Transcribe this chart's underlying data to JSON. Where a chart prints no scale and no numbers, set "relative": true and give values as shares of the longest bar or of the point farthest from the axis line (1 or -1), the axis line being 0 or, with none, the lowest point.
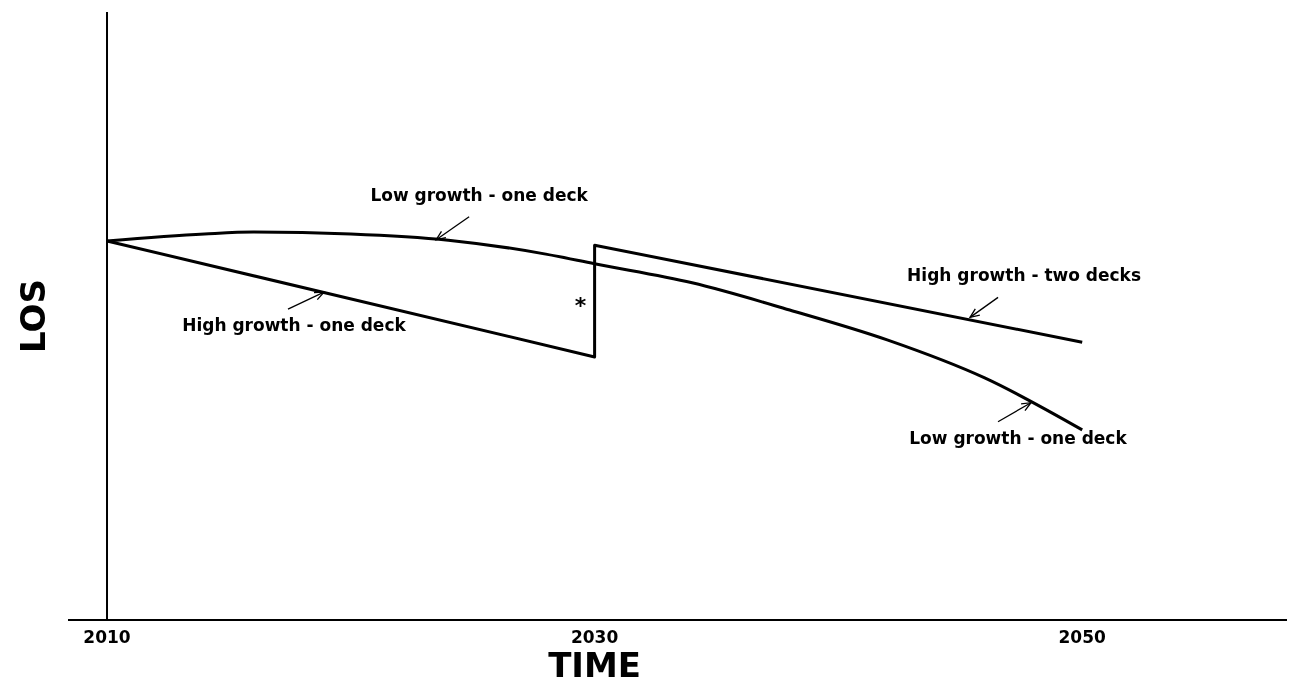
{
  "chart_data": {
    "type": "line",
    "xlabel": "TIME",
    "ylabel": "LOS",
    "relative": true,
    "xlim": [
      2008.4,
      2058.4
    ],
    "xticks": [
      2010,
      2030,
      2050
    ],
    "series": [
      {
        "color": "#000000",
        "x": [
          2010,
          2014,
          2016,
          2020,
          2024,
          2028,
          2030,
          2034,
          2038,
          2042,
          2046,
          2050
        ],
        "values": [
          0.977,
          0.995,
          1.0,
          0.995,
          0.979,
          0.943,
          0.918,
          0.869,
          0.799,
          0.722,
          0.624,
          0.49
        ]
      },
      {
        "color": "#000000",
        "x": [
          2010,
          2030,
          2030,
          2050
        ],
        "values": [
          0.977,
          0.678,
          0.966,
          0.716
        ]
      }
    ],
    "annotations": [
      {
        "text": "Low growth - one deck",
        "x": 2023.5,
        "y": 0.98
      },
      {
        "text": "High growth - one deck",
        "x": 2018.9,
        "y": 0.845
      },
      {
        "text": "*",
        "x": 2030,
        "y": 0.8
      },
      {
        "text": "High growth - two decks",
        "x": 2045.4,
        "y": 0.78
      },
      {
        "text": "Low growth - one deck",
        "x": 2047.9,
        "y": 0.56
      }
    ]
  }
}
